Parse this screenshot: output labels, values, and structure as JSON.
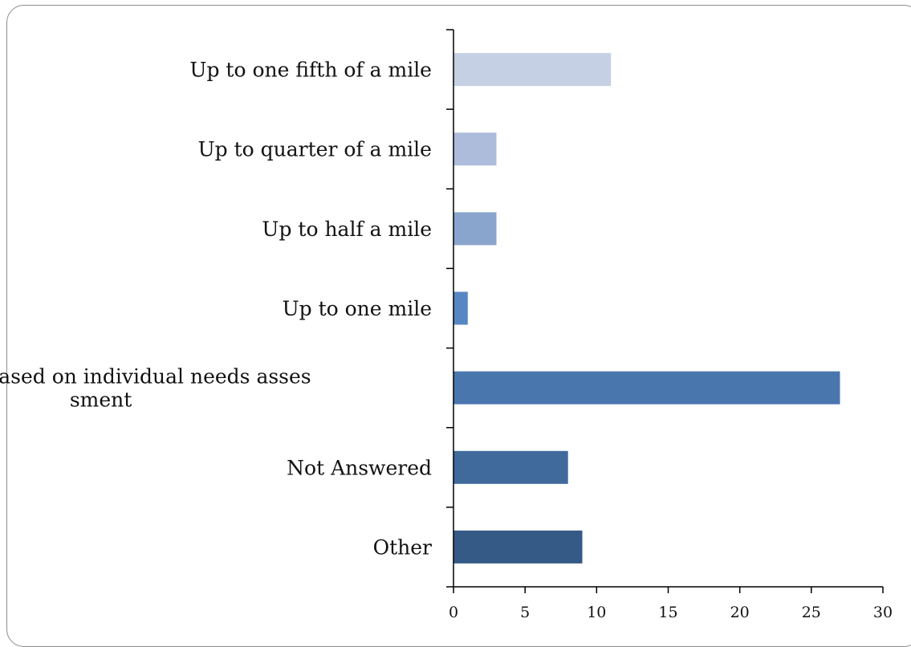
{
  "chart_data": {
    "type": "bar",
    "orientation": "horizontal",
    "categories": [
      [
        "Up to one fifth of a mile"
      ],
      [
        "Up to quarter of a mile"
      ],
      [
        "Up to half a mile"
      ],
      [
        "Up to one mile"
      ],
      [
        "Distance based on individual needs asses",
        "sment"
      ],
      [
        "Not Answered"
      ],
      [
        "Other"
      ]
    ],
    "values": [
      11,
      3,
      3,
      1,
      27,
      8,
      9
    ],
    "bar_colors": [
      "#c5d0e4",
      "#aebcdb",
      "#8aa5cd",
      "#5787c2",
      "#4a76ae",
      "#416a9c",
      "#355a86"
    ],
    "xlim": [
      0,
      30
    ],
    "xticks": [
      0,
      5,
      10,
      15,
      20,
      25,
      30
    ],
    "title": "",
    "xlabel": "",
    "ylabel": "",
    "grid": false,
    "legend": "none"
  }
}
